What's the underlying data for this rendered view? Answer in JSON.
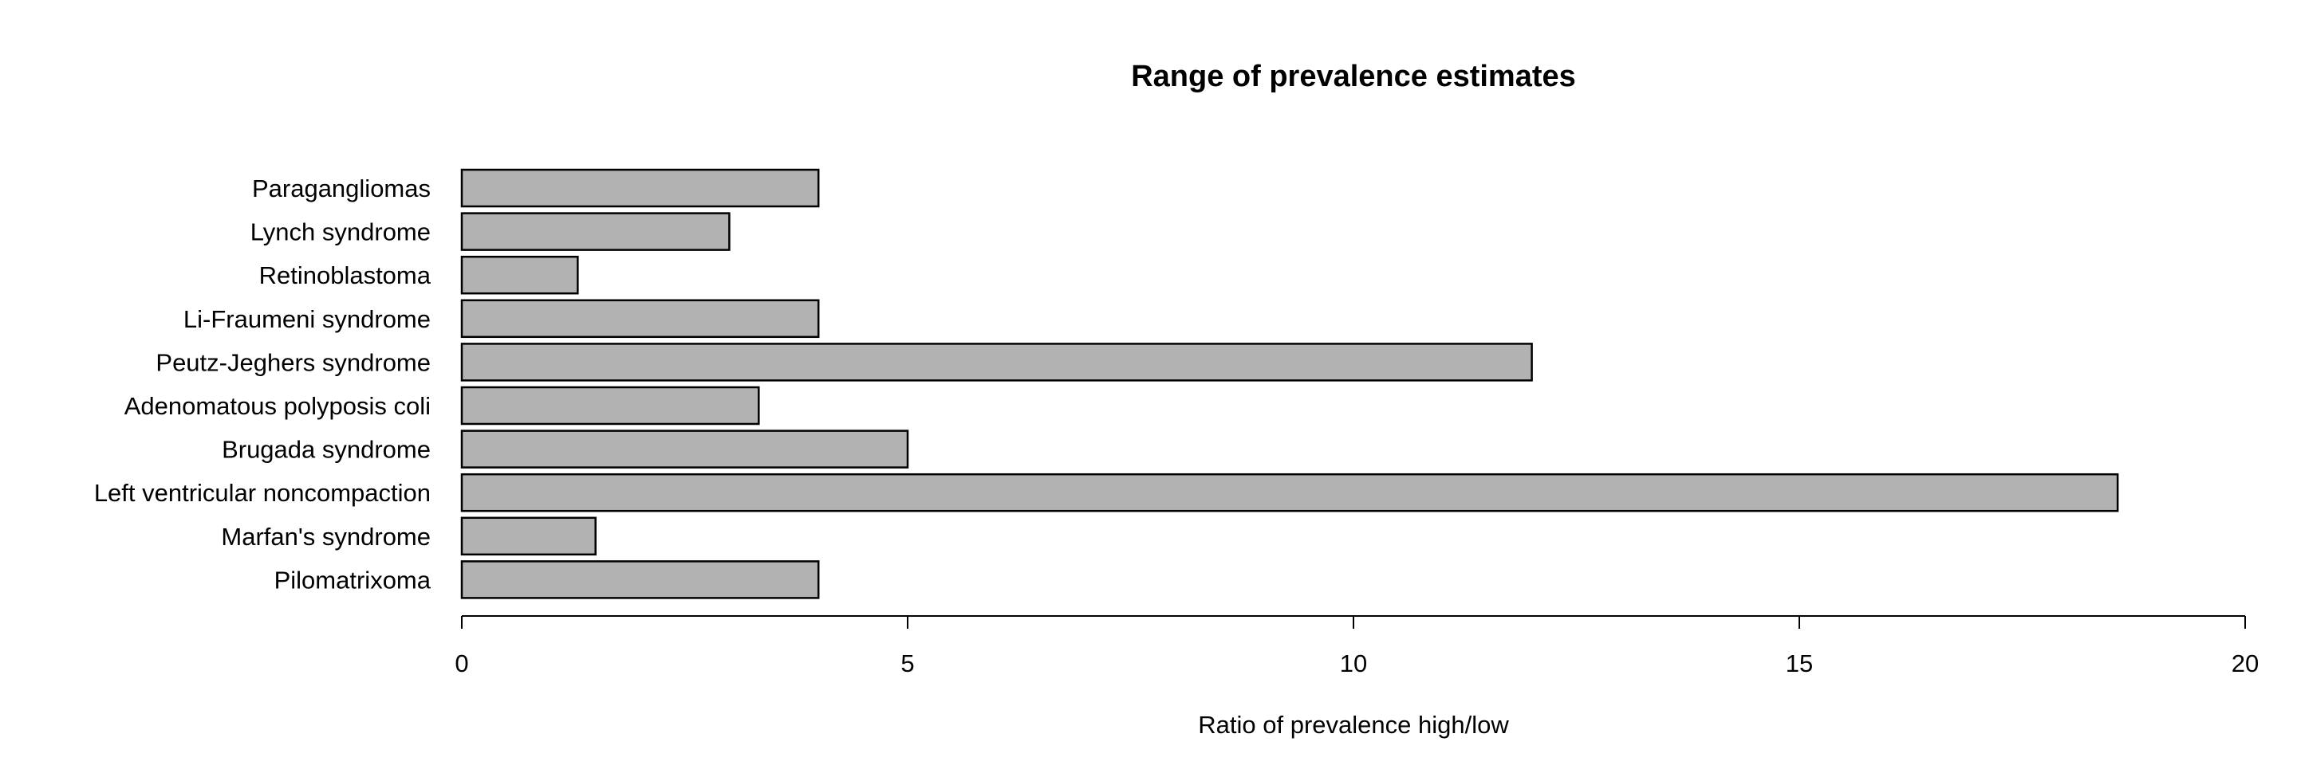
{
  "chart_data": {
    "type": "bar",
    "orientation": "horizontal",
    "title": "Range of prevalence estimates",
    "xlabel": "Ratio of prevalence high/low",
    "ylabel": "",
    "xlim": [
      0,
      20
    ],
    "xticks": [
      0,
      5,
      10,
      15,
      20
    ],
    "grid": false,
    "categories": [
      "Paragangliomas",
      "Lynch syndrome",
      "Retinoblastoma",
      "Li-Fraumeni syndrome",
      "Peutz-Jeghers syndrome",
      "Adenomatous polyposis coli",
      "Brugada syndrome",
      "Left ventricular noncompaction",
      "Marfan's syndrome",
      "Pilomatrixoma"
    ],
    "values": [
      4,
      3,
      1.3,
      4,
      12,
      3.33,
      5,
      18.57,
      1.5,
      4
    ],
    "colors": {
      "bar_fill": "#b2b2b2",
      "bar_stroke": "#000000"
    }
  }
}
